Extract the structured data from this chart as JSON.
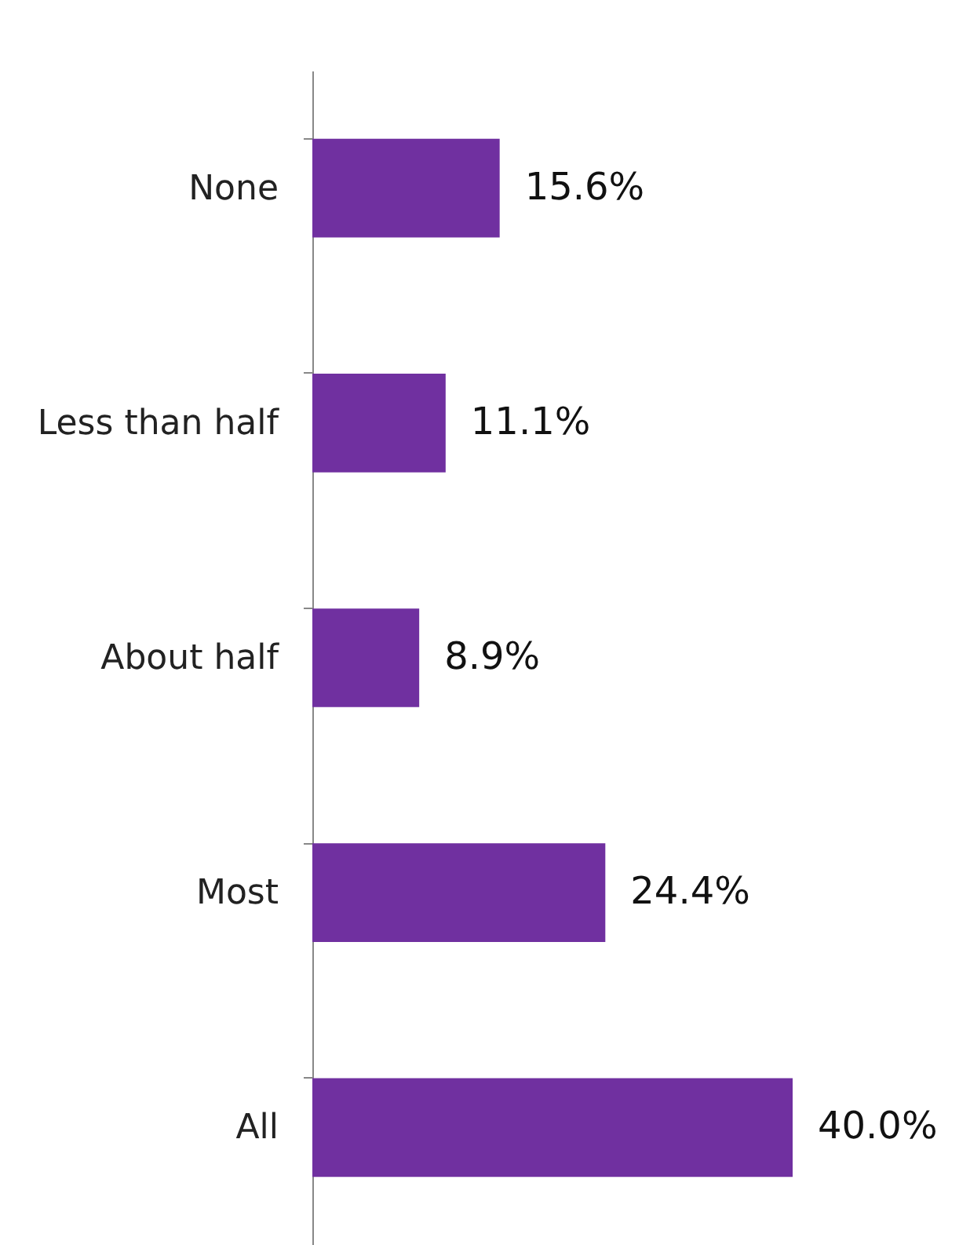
{
  "chart_data": {
    "type": "bar",
    "orientation": "horizontal",
    "categories": [
      "None",
      "Less than half",
      "About half",
      "Most",
      "All"
    ],
    "values": [
      15.6,
      11.1,
      8.9,
      24.4,
      40.0
    ],
    "color": "#7030a0",
    "value_labels": [
      "15.6%",
      "11.1%",
      "8.9%",
      "24.4%",
      "40.0%"
    ]
  }
}
